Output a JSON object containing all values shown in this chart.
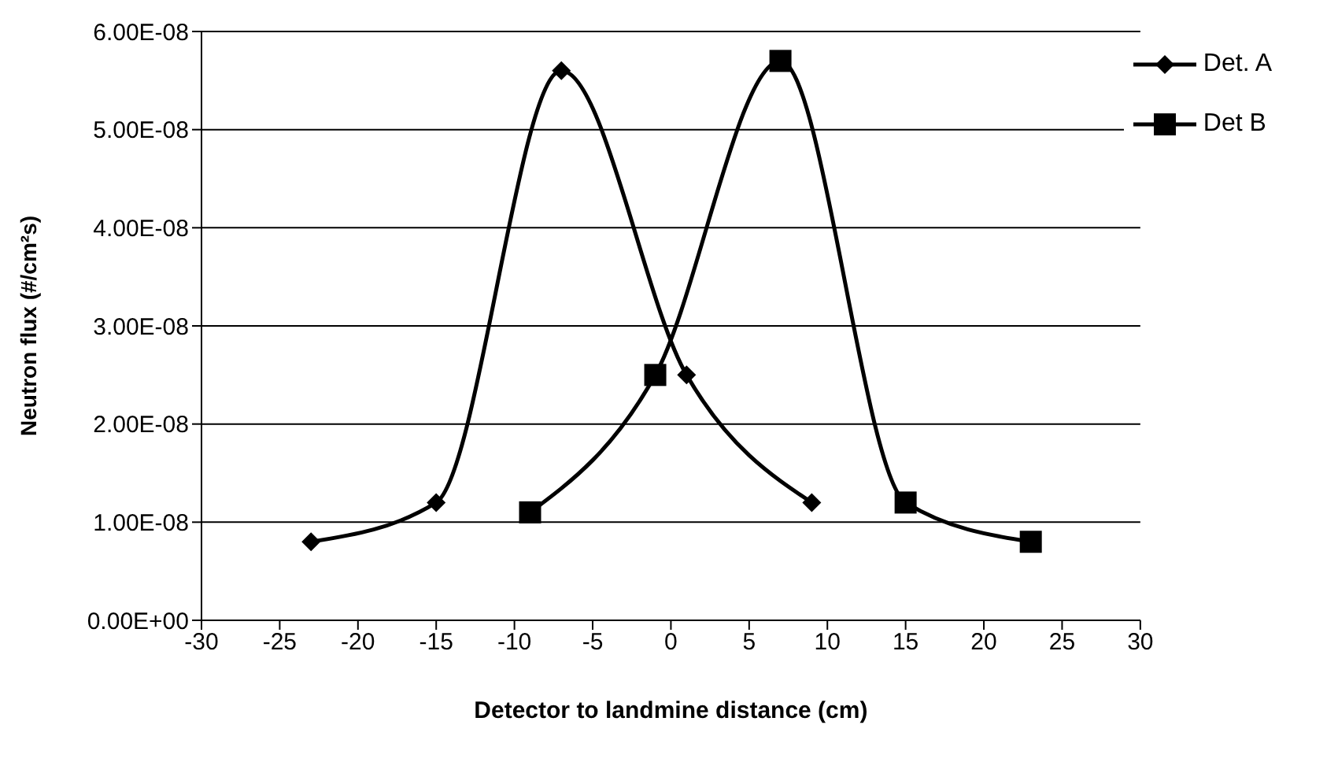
{
  "chart_data": {
    "type": "line",
    "xlabel": "Detector to landmine distance (cm)",
    "ylabel": "Neutron flux (#/cm²s)",
    "xlim": [
      -30,
      30
    ],
    "xticks": [
      -30,
      -25,
      -20,
      -15,
      -10,
      -5,
      0,
      5,
      10,
      15,
      20,
      25,
      30
    ],
    "ylim": [
      0,
      6e-08
    ],
    "yticks": [
      {
        "value": 0,
        "label": "0.00E+00"
      },
      {
        "value": 1e-08,
        "label": "1.00E-08"
      },
      {
        "value": 2e-08,
        "label": "2.00E-08"
      },
      {
        "value": 3e-08,
        "label": "3.00E-08"
      },
      {
        "value": 4e-08,
        "label": "4.00E-08"
      },
      {
        "value": 5e-08,
        "label": "5.00E-08"
      },
      {
        "value": 6e-08,
        "label": "6.00E-08"
      }
    ],
    "grid": "y",
    "legend": "top right",
    "line_style": "solid",
    "series": [
      {
        "name": "Det. A",
        "color": "#000000",
        "marker": "diamond",
        "x": [
          -23,
          -15,
          -7,
          1,
          9
        ],
        "values": [
          8e-09,
          1.2e-08,
          5.6e-08,
          2.5e-08,
          1.2e-08
        ]
      },
      {
        "name": "Det B",
        "color": "#000000",
        "marker": "square",
        "x": [
          -9,
          -1,
          7,
          15,
          23
        ],
        "values": [
          1.1e-08,
          2.5e-08,
          5.7e-08,
          1.2e-08,
          8e-09
        ]
      }
    ]
  }
}
